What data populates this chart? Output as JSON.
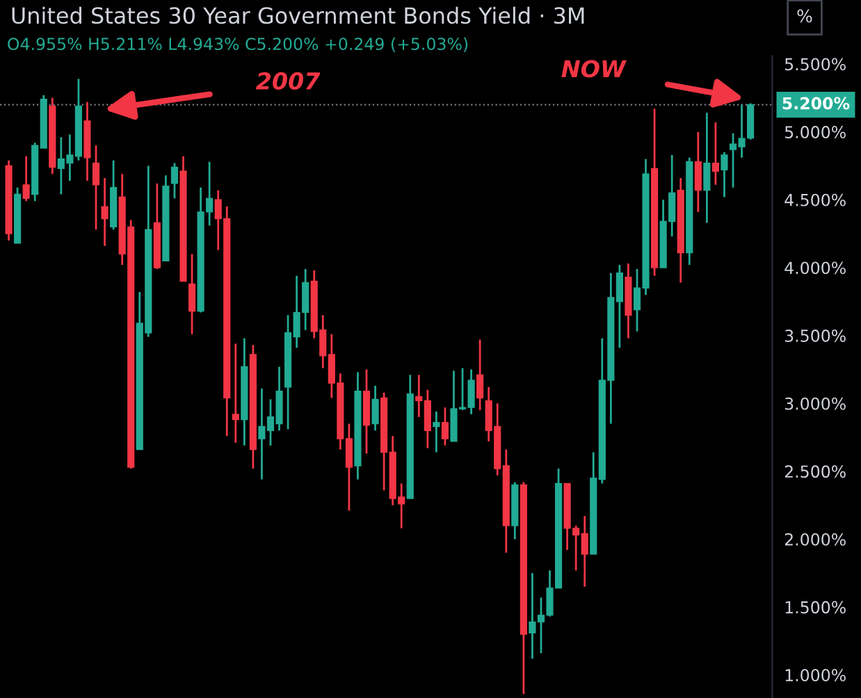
{
  "chart_data": {
    "type": "candlestick",
    "title": "United States 30 Year Government Bonds Yield · 3M",
    "subtitle": "O4.955% H5.211% L4.943% C5.200% +0.249 (+5.03%)",
    "annotations": [
      "2007",
      "NOW",
      "%"
    ],
    "categories": [
      null,
      null,
      null,
      null,
      null,
      null,
      null,
      null,
      null,
      null,
      null,
      null,
      null,
      null,
      null,
      null,
      null,
      null,
      null,
      null,
      null,
      null,
      null,
      null,
      null,
      null,
      null,
      null,
      null,
      null,
      null,
      null,
      null,
      null,
      null,
      null,
      null,
      null,
      null,
      null,
      null,
      null,
      null,
      null,
      null,
      null,
      null,
      null,
      null,
      null,
      null,
      null,
      null,
      null,
      null,
      null,
      null,
      null,
      null,
      null,
      null,
      null,
      null,
      null,
      null,
      null,
      null,
      null,
      null,
      null,
      null,
      null,
      null,
      null,
      null,
      null,
      null,
      null,
      null,
      null,
      null,
      null,
      null,
      null,
      null,
      null
    ],
    "ohlc": [
      [
        4.75,
        4.79,
        4.2,
        4.25
      ],
      [
        4.18,
        4.59,
        4.18,
        4.54
      ],
      [
        4.61,
        4.82,
        4.49,
        4.51
      ],
      [
        4.54,
        4.92,
        4.49,
        4.9
      ],
      [
        4.88,
        5.27,
        4.88,
        5.24
      ],
      [
        5.19,
        5.25,
        4.69,
        4.74
      ],
      [
        4.73,
        4.96,
        4.54,
        4.8
      ],
      [
        4.77,
        4.98,
        4.64,
        4.83
      ],
      [
        4.82,
        5.39,
        4.79,
        5.19
      ],
      [
        5.08,
        5.22,
        4.64,
        4.81
      ],
      [
        4.77,
        4.9,
        4.28,
        4.61
      ],
      [
        4.45,
        4.66,
        4.16,
        4.36
      ],
      [
        4.3,
        4.79,
        4.28,
        4.59
      ],
      [
        4.52,
        4.69,
        4.02,
        4.1
      ],
      [
        4.3,
        4.35,
        2.52,
        2.53
      ],
      [
        2.66,
        3.82,
        2.66,
        3.59
      ],
      [
        3.52,
        4.75,
        3.49,
        4.28
      ],
      [
        4.33,
        4.62,
        3.99,
        4.0
      ],
      [
        4.05,
        4.68,
        4.05,
        4.6
      ],
      [
        4.62,
        4.77,
        4.51,
        4.74
      ],
      [
        4.71,
        4.82,
        3.9,
        3.9
      ],
      [
        3.88,
        4.1,
        3.51,
        3.68
      ],
      [
        3.68,
        4.59,
        3.67,
        4.41
      ],
      [
        4.41,
        4.78,
        4.31,
        4.51
      ],
      [
        4.5,
        4.57,
        4.13,
        4.36
      ],
      [
        4.36,
        4.45,
        2.76,
        3.04
      ],
      [
        2.92,
        3.44,
        2.71,
        2.88
      ],
      [
        2.88,
        3.48,
        2.69,
        3.27
      ],
      [
        3.36,
        3.43,
        2.52,
        2.66
      ],
      [
        2.74,
        3.11,
        2.44,
        2.83
      ],
      [
        2.8,
        3.03,
        2.69,
        2.9
      ],
      [
        2.85,
        3.27,
        2.8,
        3.09
      ],
      [
        3.12,
        3.65,
        2.81,
        3.52
      ],
      [
        3.49,
        3.94,
        3.41,
        3.67
      ],
      [
        3.67,
        3.99,
        3.54,
        3.89
      ],
      [
        3.9,
        3.98,
        3.48,
        3.53
      ],
      [
        3.54,
        3.65,
        3.26,
        3.35
      ],
      [
        3.36,
        3.51,
        3.04,
        3.15
      ],
      [
        3.15,
        3.22,
        2.66,
        2.74
      ],
      [
        2.74,
        2.85,
        2.21,
        2.53
      ],
      [
        2.54,
        3.23,
        2.44,
        3.09
      ],
      [
        3.09,
        3.25,
        2.63,
        2.84
      ],
      [
        2.85,
        3.13,
        2.8,
        3.03
      ],
      [
        3.04,
        3.08,
        2.36,
        2.64
      ],
      [
        2.64,
        2.76,
        2.25,
        2.3
      ],
      [
        2.31,
        2.41,
        2.08,
        2.26
      ],
      [
        2.3,
        3.21,
        2.3,
        3.07
      ],
      [
        3.05,
        3.21,
        2.9,
        3.02
      ],
      [
        3.02,
        3.1,
        2.67,
        2.8
      ],
      [
        2.83,
        2.94,
        2.64,
        2.86
      ],
      [
        2.86,
        2.97,
        2.69,
        2.74
      ],
      [
        2.72,
        3.24,
        2.72,
        2.96
      ],
      [
        2.96,
        3.26,
        2.95,
        2.97
      ],
      [
        2.97,
        3.25,
        2.92,
        3.17
      ],
      [
        3.21,
        3.47,
        2.95,
        3.04
      ],
      [
        3.02,
        3.12,
        2.72,
        2.8
      ],
      [
        2.83,
        3.0,
        2.47,
        2.52
      ],
      [
        2.54,
        2.66,
        1.9,
        2.1
      ],
      [
        2.1,
        2.42,
        2.0,
        2.4
      ],
      [
        2.4,
        2.42,
        0.86,
        1.3
      ],
      [
        1.31,
        1.75,
        1.12,
        1.39
      ],
      [
        1.39,
        1.57,
        1.16,
        1.44
      ],
      [
        1.44,
        1.77,
        1.43,
        1.64
      ],
      [
        1.64,
        2.52,
        1.64,
        2.41
      ],
      [
        2.41,
        2.41,
        1.92,
        2.08
      ],
      [
        2.08,
        2.1,
        1.77,
        2.03
      ],
      [
        2.04,
        2.17,
        1.65,
        1.89
      ],
      [
        1.89,
        2.64,
        1.89,
        2.45
      ],
      [
        2.44,
        3.48,
        2.41,
        3.17
      ],
      [
        3.17,
        3.96,
        2.85,
        3.78
      ],
      [
        3.75,
        4.02,
        3.41,
        3.96
      ],
      [
        3.93,
        4.03,
        3.48,
        3.65
      ],
      [
        3.69,
        3.99,
        3.53,
        3.85
      ],
      [
        3.85,
        4.8,
        3.8,
        4.69
      ],
      [
        4.73,
        5.17,
        3.94,
        4.0
      ],
      [
        4.0,
        4.5,
        4.0,
        4.34
      ],
      [
        4.34,
        4.83,
        4.23,
        4.55
      ],
      [
        4.57,
        4.66,
        3.89,
        4.11
      ],
      [
        4.11,
        4.81,
        4.02,
        4.78
      ],
      [
        4.78,
        5.0,
        4.41,
        4.57
      ],
      [
        4.57,
        5.14,
        4.33,
        4.77
      ],
      [
        4.77,
        5.07,
        4.61,
        4.71
      ],
      [
        4.72,
        4.85,
        4.52,
        4.83
      ],
      [
        4.87,
        4.99,
        4.59,
        4.91
      ],
      [
        4.89,
        5.2,
        4.81,
        4.951
      ],
      [
        4.955,
        5.211,
        4.943,
        5.2
      ]
    ],
    "colors": [
      "#f23645",
      "#22ab94",
      "#f23645",
      "#22ab94",
      "#22ab94",
      "#f23645",
      "#22ab94",
      "#22ab94",
      "#22ab94",
      "#f23645",
      "#f23645",
      "#f23645",
      "#22ab94",
      "#f23645",
      "#f23645",
      "#22ab94",
      "#22ab94",
      "#f23645",
      "#22ab94",
      "#22ab94",
      "#f23645",
      "#f23645",
      "#22ab94",
      "#22ab94",
      "#f23645",
      "#f23645",
      "#f23645",
      "#22ab94",
      "#f23645",
      "#22ab94",
      "#22ab94",
      "#22ab94",
      "#22ab94",
      "#22ab94",
      "#22ab94",
      "#f23645",
      "#f23645",
      "#f23645",
      "#f23645",
      "#f23645",
      "#22ab94",
      "#f23645",
      "#22ab94",
      "#f23645",
      "#f23645",
      "#f23645",
      "#22ab94",
      "#f23645",
      "#f23645",
      "#22ab94",
      "#f23645",
      "#22ab94",
      "#22ab94",
      "#22ab94",
      "#f23645",
      "#f23645",
      "#f23645",
      "#f23645",
      "#22ab94",
      "#f23645",
      "#22ab94",
      "#22ab94",
      "#22ab94",
      "#22ab94",
      "#f23645",
      "#f23645",
      "#f23645",
      "#22ab94",
      "#22ab94",
      "#22ab94",
      "#22ab94",
      "#f23645",
      "#22ab94",
      "#22ab94",
      "#f23645",
      "#22ab94",
      "#22ab94",
      "#f23645",
      "#22ab94",
      "#f23645",
      "#22ab94",
      "#f23645",
      "#22ab94",
      "#22ab94",
      "#22ab94",
      "#22ab94"
    ],
    "ylim": [
      0.83,
      5.56
    ],
    "yticks": [
      {
        "value": 1.0,
        "label": "1.000%"
      },
      {
        "value": 1.5,
        "label": "1.500%"
      },
      {
        "value": 2.0,
        "label": "2.000%"
      },
      {
        "value": 2.5,
        "label": "2.500%"
      },
      {
        "value": 3.0,
        "label": "3.000%"
      },
      {
        "value": 3.5,
        "label": "3.500%"
      },
      {
        "value": 4.0,
        "label": "4.000%"
      },
      {
        "value": 4.5,
        "label": "4.500%"
      },
      {
        "value": 5.0,
        "label": "5.000%"
      },
      {
        "value": 5.5,
        "label": "5.500%"
      }
    ],
    "ref_lines": [
      {
        "axis": "y",
        "value": 5.2,
        "label": "5.200%",
        "color": "#787b86",
        "line_style": "dotted"
      }
    ],
    "tick_labels": "y",
    "grid": false
  }
}
